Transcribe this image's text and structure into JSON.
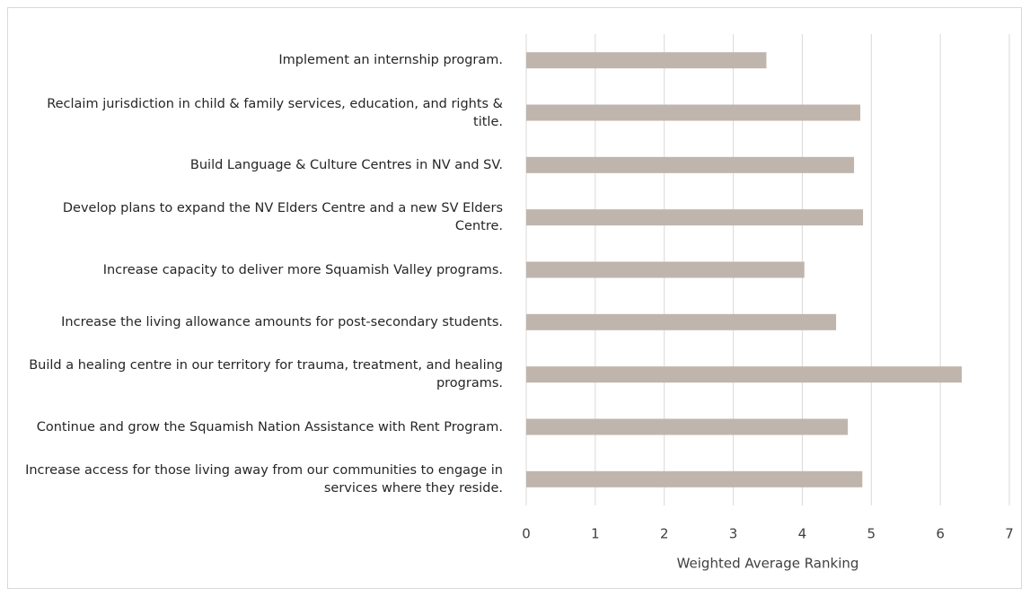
{
  "chart_data": {
    "type": "hbar",
    "categories": [
      "Implement an internship program.",
      "Reclaim jurisdiction in child & family services, education, and rights & title.",
      "Build Language & Culture Centres in NV and SV.",
      "Develop plans to expand the NV Elders Centre and a new SV Elders Centre.",
      "Increase capacity to deliver more Squamish Valley programs.",
      "Increase the living allowance amounts for post-secondary students.",
      "Build a healing centre in our territory for trauma, treatment, and healing programs.",
      "Continue and grow the Squamish Nation Assistance with Rent Program.",
      "Increase access for those living away from our communities to engage in services where they reside."
    ],
    "values": [
      3.48,
      4.84,
      4.75,
      4.88,
      4.03,
      4.49,
      6.31,
      4.66,
      4.87
    ],
    "color": "#bfb5ad",
    "x_label": "Weighted Average Ranking",
    "xlim": [
      0,
      7
    ],
    "xticks": [
      0,
      1,
      2,
      3,
      4,
      5,
      6,
      7
    ],
    "grid": true
  }
}
